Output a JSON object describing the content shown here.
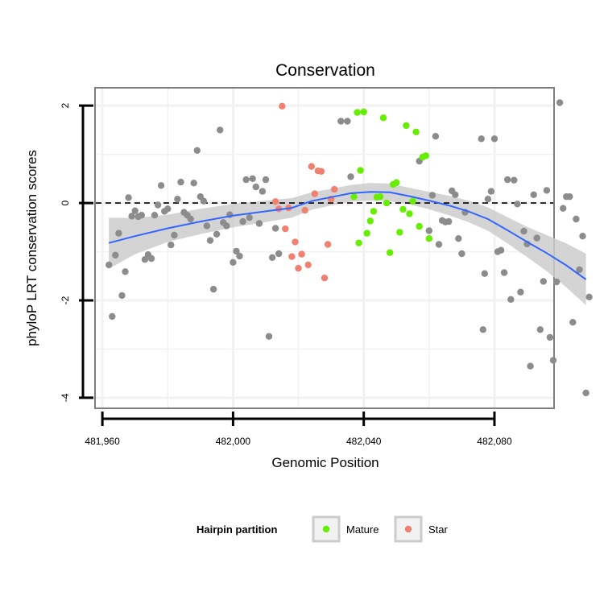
{
  "chart_data": {
    "type": "scatter",
    "title": "Conservation",
    "xlabel": "Genomic Position",
    "ylabel": "phyloP LRT conservation scores",
    "xlim": [
      481958,
      482098
    ],
    "ylim": [
      -4.2,
      2.35
    ],
    "x_ticks": [
      481960,
      482000,
      482040,
      482080
    ],
    "x_tick_labels": [
      "481,960",
      "482,000",
      "482,040",
      "482,080"
    ],
    "y_ticks": [
      2,
      0,
      -2,
      -4
    ],
    "y_tick_labels": [
      "2",
      "0",
      "-2",
      "-4"
    ],
    "reference_line": {
      "y": 0,
      "style": "dashed"
    },
    "grid": true,
    "legend": {
      "title": "Hairpin partition",
      "placement": "bottom",
      "entries": [
        {
          "label": "Mature",
          "color": "#66ee00"
        },
        {
          "label": "Star",
          "color": "#f08070"
        }
      ]
    },
    "colors": {
      "other": "#8c8c8c",
      "Mature": "#66ee00",
      "Star": "#f08070",
      "smooth": "#3366ff",
      "ribbon": "#cccccc"
    },
    "series": [
      {
        "name": "",
        "color": "#8c8c8c",
        "points": [
          [
            481962,
            -1.27
          ],
          [
            481963,
            -2.33
          ],
          [
            481964,
            -1.07
          ],
          [
            481965,
            -0.62
          ],
          [
            481966,
            -1.9
          ],
          [
            481967,
            -1.41
          ],
          [
            481968,
            0.11
          ],
          [
            481969,
            -0.27
          ],
          [
            481970,
            -0.16
          ],
          [
            481971,
            -0.28
          ],
          [
            481972,
            -0.25
          ],
          [
            481973,
            -1.16
          ],
          [
            481974,
            -1.06
          ],
          [
            481975,
            -1.14
          ],
          [
            481976,
            -0.25
          ],
          [
            481977,
            -0.04
          ],
          [
            481978,
            0.36
          ],
          [
            481979,
            -0.17
          ],
          [
            481980,
            -0.12
          ],
          [
            481981,
            -0.86
          ],
          [
            481982,
            -0.66
          ],
          [
            481983,
            0.08
          ],
          [
            481984,
            0.43
          ],
          [
            481985,
            -0.19
          ],
          [
            481986,
            -0.25
          ],
          [
            481987,
            -0.33
          ],
          [
            481988,
            0.41
          ],
          [
            481989,
            1.08
          ],
          [
            481990,
            0.13
          ],
          [
            481991,
            0.04
          ],
          [
            481992,
            -0.47
          ],
          [
            481993,
            -0.77
          ],
          [
            481994,
            -1.77
          ],
          [
            481995,
            -0.64
          ],
          [
            481996,
            1.5
          ],
          [
            481997,
            -0.4
          ],
          [
            481998,
            -0.47
          ],
          [
            481999,
            -0.24
          ],
          [
            482000,
            -1.22
          ],
          [
            482001,
            -0.99
          ],
          [
            482002,
            -1.09
          ],
          [
            482003,
            -0.38
          ],
          [
            482004,
            0.48
          ],
          [
            482005,
            -0.3
          ],
          [
            482006,
            0.5
          ],
          [
            482007,
            0.33
          ],
          [
            482008,
            -0.42
          ],
          [
            482009,
            0.24
          ],
          [
            482010,
            0.48
          ],
          [
            482011,
            -2.74
          ],
          [
            482012,
            -1.12
          ],
          [
            482013,
            -0.52
          ],
          [
            482014,
            -1.04
          ],
          [
            482033,
            1.68
          ],
          [
            482035,
            1.68
          ],
          [
            482036,
            0.54
          ],
          [
            482057,
            0.86
          ],
          [
            482060,
            -0.57
          ],
          [
            482061,
            0.16
          ],
          [
            482062,
            1.37
          ],
          [
            482063,
            -0.85
          ],
          [
            482064,
            -0.36
          ],
          [
            482065,
            -0.39
          ],
          [
            482066,
            -0.38
          ],
          [
            482067,
            0.25
          ],
          [
            482068,
            0.17
          ],
          [
            482069,
            -0.73
          ],
          [
            482070,
            -1.04
          ],
          [
            482071,
            -0.19
          ],
          [
            482076,
            1.32
          ],
          [
            482076.5,
            -2.6
          ],
          [
            482077,
            -1.45
          ],
          [
            482078,
            0.08
          ],
          [
            482079,
            0.24
          ],
          [
            482080,
            1.32
          ],
          [
            482081,
            -1.0
          ],
          [
            482082,
            -0.97
          ],
          [
            482083,
            -1.43
          ],
          [
            482084,
            0.48
          ],
          [
            482085,
            -1.98
          ],
          [
            482086,
            0.47
          ],
          [
            482087,
            -0.02
          ],
          [
            482088,
            -1.83
          ],
          [
            482089,
            -0.58
          ],
          [
            482090,
            -0.84
          ],
          [
            482091,
            -3.35
          ],
          [
            482092,
            0.17
          ],
          [
            482093,
            -0.72
          ],
          [
            482094,
            -2.6
          ],
          [
            482095,
            -1.61
          ],
          [
            482096,
            0.26
          ],
          [
            482097,
            -2.76
          ],
          [
            482098,
            -3.23
          ],
          [
            482099,
            -1.62
          ],
          [
            482100,
            2.06
          ],
          [
            482101,
            -0.11
          ],
          [
            482102,
            0.13
          ],
          [
            482103,
            0.13
          ],
          [
            482104,
            -2.45
          ],
          [
            482105,
            -0.33
          ],
          [
            482106,
            -1.37
          ],
          [
            482107,
            -0.68
          ],
          [
            482108,
            -3.9
          ],
          [
            482109,
            -1.93
          ]
        ]
      },
      {
        "name": "Mature",
        "color": "#66ee00",
        "points": [
          [
            482037,
            0.13
          ],
          [
            482038,
            1.86
          ],
          [
            482038.5,
            -0.82
          ],
          [
            482039,
            0.67
          ],
          [
            482040,
            1.87
          ],
          [
            482041,
            -0.62
          ],
          [
            482042,
            -0.37
          ],
          [
            482043,
            -0.17
          ],
          [
            482044,
            0.12
          ],
          [
            482045,
            0.13
          ],
          [
            482046,
            1.75
          ],
          [
            482047,
            0.0
          ],
          [
            482048,
            -1.02
          ],
          [
            482049,
            0.38
          ],
          [
            482050,
            0.42
          ],
          [
            482051,
            -0.6
          ],
          [
            482052,
            -0.13
          ],
          [
            482053,
            1.59
          ],
          [
            482054,
            -0.22
          ],
          [
            482055,
            0.04
          ],
          [
            482056,
            1.46
          ],
          [
            482057,
            -0.48
          ],
          [
            482058,
            0.94
          ],
          [
            482059,
            0.97
          ],
          [
            482060,
            -0.73
          ]
        ]
      },
      {
        "name": "Star",
        "color": "#f08070",
        "points": [
          [
            482013,
            0.03
          ],
          [
            482014,
            -0.12
          ],
          [
            482015,
            1.99
          ],
          [
            482016,
            -0.53
          ],
          [
            482017,
            -0.1
          ],
          [
            482018,
            -1.1
          ],
          [
            482019,
            -0.8
          ],
          [
            482020,
            -1.34
          ],
          [
            482021,
            -1.05
          ],
          [
            482022,
            -0.15
          ],
          [
            482023,
            -1.27
          ],
          [
            482024,
            0.75
          ],
          [
            482025,
            0.19
          ],
          [
            482026,
            0.66
          ],
          [
            482027,
            0.65
          ],
          [
            482028,
            -1.54
          ],
          [
            482029,
            -0.85
          ],
          [
            482030,
            0.08
          ],
          [
            482031,
            0.28
          ]
        ]
      }
    ],
    "smooth": {
      "x": [
        481962,
        481970,
        481980,
        481990,
        482000,
        482010,
        482018,
        482024,
        482030,
        482036,
        482042,
        482048,
        482054,
        482060,
        482066,
        482072,
        482078,
        482084,
        482090,
        482096,
        482102,
        482108
      ],
      "y": [
        -0.82,
        -0.68,
        -0.52,
        -0.38,
        -0.26,
        -0.17,
        -0.1,
        0.04,
        0.12,
        0.2,
        0.23,
        0.22,
        0.14,
        0.05,
        -0.05,
        -0.17,
        -0.33,
        -0.56,
        -0.8,
        -1.03,
        -1.28,
        -1.57
      ],
      "lower": [
        -1.35,
        -1.05,
        -0.8,
        -0.64,
        -0.5,
        -0.39,
        -0.3,
        -0.14,
        -0.05,
        0.03,
        0.05,
        0.04,
        -0.03,
        -0.13,
        -0.25,
        -0.39,
        -0.57,
        -0.83,
        -1.11,
        -1.4,
        -1.73,
        -2.1
      ],
      "upper": [
        -0.3,
        -0.31,
        -0.24,
        -0.12,
        -0.02,
        0.05,
        0.1,
        0.22,
        0.29,
        0.37,
        0.41,
        0.4,
        0.31,
        0.23,
        0.15,
        0.05,
        -0.09,
        -0.29,
        -0.49,
        -0.66,
        -0.83,
        -1.04
      ]
    }
  }
}
